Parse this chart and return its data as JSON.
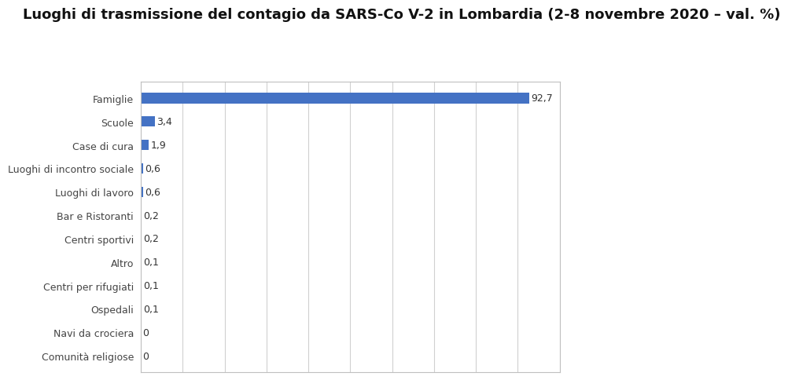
{
  "title": "Luoghi di trasmissione del contagio da SARS-Co V-2 in Lombardia (2-8 novembre 2020 – val. %)",
  "categories": [
    "Famiglie",
    "Scuole",
    "Case di cura",
    "Luoghi di incontro sociale",
    "Luoghi di lavoro",
    "Bar e Ristoranti",
    "Centri sportivi",
    "Altro",
    "Centri per rifugiati",
    "Ospedali",
    "Navi da crociera",
    "Comunità religiose"
  ],
  "values": [
    92.7,
    3.4,
    1.9,
    0.6,
    0.6,
    0.2,
    0.2,
    0.1,
    0.1,
    0.1,
    0,
    0
  ],
  "bar_color": "#4472C4",
  "background_color": "#ffffff",
  "title_fontsize": 13,
  "label_fontsize": 9,
  "value_fontsize": 9,
  "xlim": [
    0,
    100
  ],
  "grid_ticks": [
    0,
    10,
    20,
    30,
    40,
    50,
    60,
    70,
    80,
    90,
    100
  ]
}
